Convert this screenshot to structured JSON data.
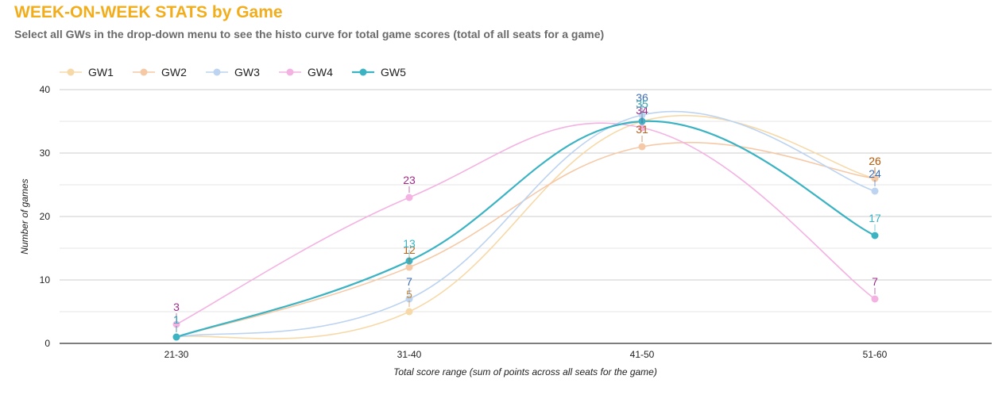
{
  "header": {
    "title": "WEEK-ON-WEEK STATS by Game",
    "subtitle": "Select all GWs in the drop-down menu to see the histo curve for total game scores (total of all seats for a game)"
  },
  "chart_data": {
    "type": "line",
    "title": "WEEK-ON-WEEK STATS by Game",
    "categories": [
      "21-30",
      "31-40",
      "41-50",
      "51-60"
    ],
    "xlabel": "Total score range (sum of points across all seats for the game)",
    "ylabel": "Number of games",
    "ylim": [
      0,
      40
    ],
    "yticks": [
      0,
      10,
      20,
      30,
      40
    ],
    "grid": true,
    "legend": "top-left",
    "smooth": true,
    "series": [
      {
        "name": "GW1",
        "values": [
          1,
          5,
          35,
          26
        ],
        "color": "#f7d9a8",
        "label_color": "#c58a3c",
        "faded": true
      },
      {
        "name": "GW2",
        "values": [
          1,
          12,
          31,
          26
        ],
        "color": "#f6c9a6",
        "label_color": "#b5651d",
        "faded": true
      },
      {
        "name": "GW3",
        "values": [
          1,
          7,
          36,
          24
        ],
        "color": "#bcd3f1",
        "label_color": "#3d6db5",
        "faded": true
      },
      {
        "name": "GW4",
        "values": [
          3,
          23,
          34,
          7
        ],
        "color": "#f4b2e2",
        "label_color": "#9b2d87",
        "faded": true
      },
      {
        "name": "GW5",
        "values": [
          1,
          13,
          35,
          17
        ],
        "color": "#3bb3c3",
        "label_color": "#3bb3c3",
        "faded": false
      }
    ]
  }
}
